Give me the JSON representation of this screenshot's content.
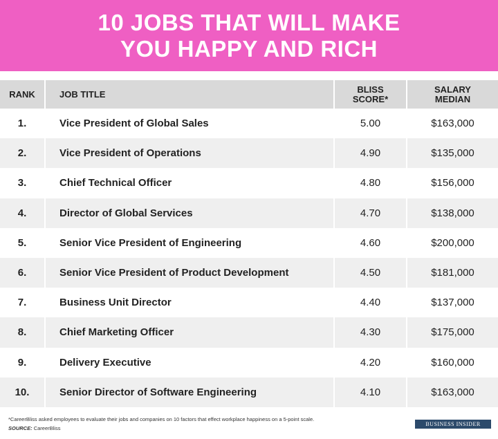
{
  "header": {
    "title_lines": [
      "10 JOBS THAT WILL MAKE",
      "YOU HAPPY AND RICH"
    ]
  },
  "table": {
    "columns": [
      [
        "RANK"
      ],
      [
        "JOB TITLE"
      ],
      [
        "BLISS",
        "SCORE*"
      ],
      [
        "SALARY",
        "MEDIAN"
      ]
    ],
    "rows": [
      [
        "1.",
        "Vice President of Global Sales",
        "5.00",
        "$163,000"
      ],
      [
        "2.",
        "Vice President of Operations",
        "4.90",
        "$135,000"
      ],
      [
        "3.",
        "Chief Technical Officer",
        "4.80",
        "$156,000"
      ],
      [
        "4.",
        "Director of Global Services",
        "4.70",
        "$138,000"
      ],
      [
        "5.",
        "Senior Vice President of Engineering",
        "4.60",
        "$200,000"
      ],
      [
        "6.",
        "Senior Vice President of Product Development",
        "4.50",
        "$181,000"
      ],
      [
        "7.",
        "Business Unit Director",
        "4.40",
        "$137,000"
      ],
      [
        "8.",
        "Chief Marketing Officer",
        "4.30",
        "$175,000"
      ],
      [
        "9.",
        "Delivery Executive",
        "4.20",
        "$160,000"
      ],
      [
        "10.",
        "Senior Director of Software Engineering",
        "4.10",
        "$163,000"
      ]
    ]
  },
  "footer": {
    "note": "*CareerBliss asked employees to evaluate their jobs and companies on 10 factors that effect workplace happiness on a 5-point scale.",
    "source_label": "SOURCE:",
    "source": "CareerBliss",
    "logo": "BUSINESS INSIDER"
  }
}
